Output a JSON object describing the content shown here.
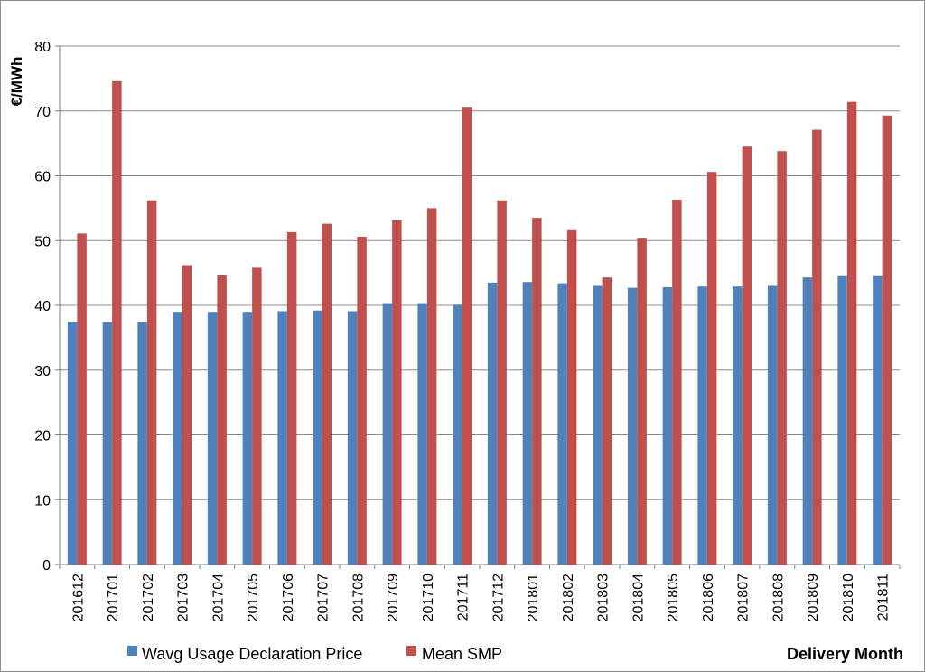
{
  "chart_data": {
    "type": "bar",
    "title": "",
    "xlabel": "Delivery Month",
    "ylabel": "€/MWh",
    "ylim": [
      0,
      80
    ],
    "yticks": [
      0,
      10,
      20,
      30,
      40,
      50,
      60,
      70,
      80
    ],
    "grid": true,
    "legend": "bottom",
    "categories": [
      "201612",
      "201701",
      "201702",
      "201703",
      "201704",
      "201705",
      "201706",
      "201707",
      "201708",
      "201709",
      "201710",
      "201711",
      "201712",
      "201801",
      "201802",
      "201803",
      "201804",
      "201805",
      "201806",
      "201807",
      "201808",
      "201809",
      "201810",
      "201811"
    ],
    "series": [
      {
        "name": "Wavg Usage Declaration Price",
        "color": "#4f81bd",
        "values": [
          37.4,
          37.4,
          37.4,
          39.0,
          39.0,
          39.0,
          39.1,
          39.2,
          39.1,
          40.2,
          40.2,
          40.1,
          43.5,
          43.6,
          43.4,
          43.0,
          42.7,
          42.8,
          42.9,
          42.9,
          43.0,
          44.3,
          44.5,
          44.5
        ]
      },
      {
        "name": "Mean SMP",
        "color": "#c0504d",
        "values": [
          51.1,
          74.6,
          56.2,
          46.2,
          44.6,
          45.8,
          51.3,
          52.6,
          50.6,
          53.1,
          55.0,
          70.5,
          56.2,
          53.5,
          51.6,
          44.3,
          50.3,
          56.3,
          60.6,
          64.5,
          63.8,
          67.1,
          71.4,
          69.3
        ]
      }
    ]
  }
}
